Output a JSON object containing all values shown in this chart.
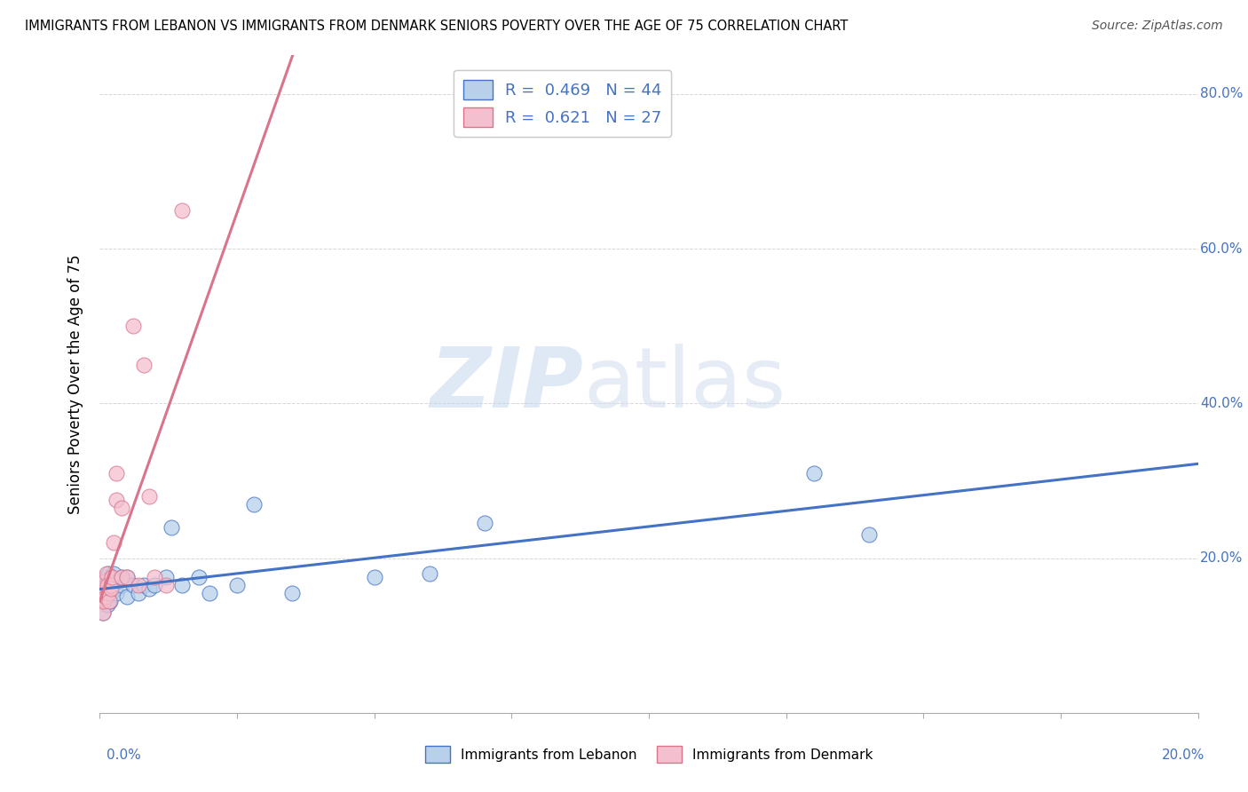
{
  "title": "IMMIGRANTS FROM LEBANON VS IMMIGRANTS FROM DENMARK SENIORS POVERTY OVER THE AGE OF 75 CORRELATION CHART",
  "source": "Source: ZipAtlas.com",
  "ylabel": "Seniors Poverty Over the Age of 75",
  "xlim": [
    0.0,
    0.2
  ],
  "ylim": [
    0.0,
    0.85
  ],
  "yticks": [
    0.0,
    0.2,
    0.4,
    0.6,
    0.8
  ],
  "ytick_labels": [
    "",
    "20.0%",
    "40.0%",
    "60.0%",
    "80.0%"
  ],
  "watermark_zip": "ZIP",
  "watermark_atlas": "atlas",
  "lebanon_fill": "#b8d0ea",
  "lebanon_edge": "#4472c4",
  "denmark_fill": "#f4bfce",
  "denmark_edge": "#d9748a",
  "lebanon_line_color": "#4472c4",
  "denmark_line_color": "#d9748a",
  "legend_R_lebanon": "0.469",
  "legend_N_lebanon": "44",
  "legend_R_denmark": "0.621",
  "legend_N_denmark": "27",
  "lebanon_scatter_x": [
    0.0002,
    0.0004,
    0.0005,
    0.0006,
    0.0007,
    0.0008,
    0.0009,
    0.001,
    0.001,
    0.0012,
    0.0013,
    0.0014,
    0.0015,
    0.0016,
    0.0017,
    0.0018,
    0.002,
    0.002,
    0.0022,
    0.0025,
    0.003,
    0.003,
    0.004,
    0.004,
    0.005,
    0.005,
    0.006,
    0.007,
    0.008,
    0.009,
    0.01,
    0.012,
    0.013,
    0.015,
    0.018,
    0.02,
    0.025,
    0.028,
    0.035,
    0.05,
    0.06,
    0.07,
    0.13,
    0.14
  ],
  "lebanon_scatter_y": [
    0.145,
    0.155,
    0.13,
    0.16,
    0.145,
    0.17,
    0.15,
    0.16,
    0.175,
    0.15,
    0.14,
    0.17,
    0.155,
    0.18,
    0.16,
    0.145,
    0.175,
    0.155,
    0.165,
    0.18,
    0.155,
    0.17,
    0.165,
    0.175,
    0.15,
    0.175,
    0.165,
    0.155,
    0.165,
    0.16,
    0.165,
    0.175,
    0.24,
    0.165,
    0.175,
    0.155,
    0.165,
    0.27,
    0.155,
    0.175,
    0.18,
    0.245,
    0.31,
    0.23
  ],
  "denmark_scatter_x": [
    0.0003,
    0.0004,
    0.0005,
    0.0006,
    0.0007,
    0.0008,
    0.001,
    0.0012,
    0.0013,
    0.0015,
    0.0017,
    0.002,
    0.002,
    0.0022,
    0.0025,
    0.003,
    0.003,
    0.004,
    0.004,
    0.005,
    0.006,
    0.007,
    0.008,
    0.009,
    0.01,
    0.012,
    0.015
  ],
  "denmark_scatter_y": [
    0.145,
    0.16,
    0.13,
    0.155,
    0.145,
    0.17,
    0.15,
    0.18,
    0.165,
    0.155,
    0.145,
    0.165,
    0.16,
    0.175,
    0.22,
    0.275,
    0.31,
    0.175,
    0.265,
    0.175,
    0.5,
    0.165,
    0.45,
    0.28,
    0.175,
    0.165,
    0.65
  ]
}
